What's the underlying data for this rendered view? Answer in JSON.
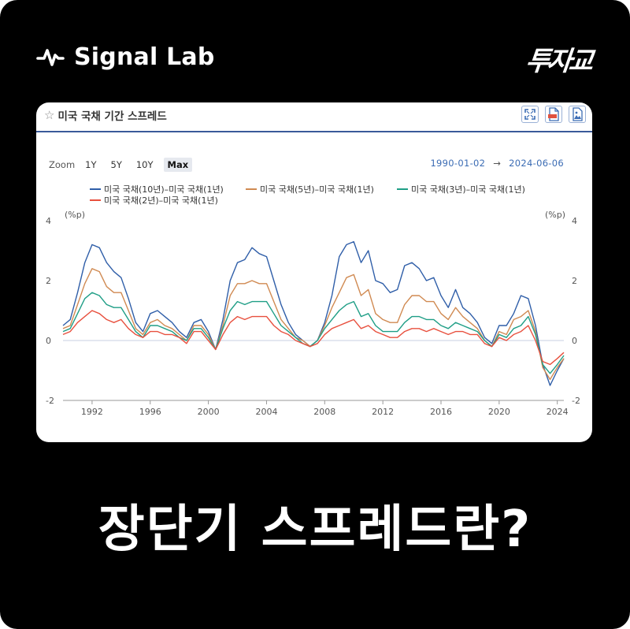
{
  "brand": {
    "name": "Signal Lab",
    "icon": "pulse-icon",
    "logo_text": "투자교"
  },
  "card": {
    "title": "미국 국채 기간 스프레드",
    "tools": [
      "fullscreen-icon",
      "download-pdf-icon",
      "download-image-icon"
    ],
    "zoom_label": "Zoom",
    "zoom_options": [
      "1Y",
      "5Y",
      "10Y",
      "Max"
    ],
    "zoom_selected": "Max",
    "range_start": "1990-01-02",
    "range_arrow": "→",
    "range_end": "2024-06-06"
  },
  "headline": "장단기 스프레드란?",
  "chart_data": {
    "type": "line",
    "ylabel_left": "(%p)",
    "ylabel_right": "(%p)",
    "ylim": [
      -2,
      4
    ],
    "yticks": [
      -2,
      0,
      2,
      4
    ],
    "xlim": [
      1990.0,
      2024.45
    ],
    "xticks": [
      1992,
      1996,
      2000,
      2004,
      2008,
      2012,
      2016,
      2020,
      2024
    ],
    "legend_position": "top",
    "series": [
      {
        "name": "미국 국채(10년)–미국 국채(1년)",
        "color": "#2f5ea8",
        "x": [
          1990.0,
          1990.5,
          1991.0,
          1991.5,
          1992.0,
          1992.5,
          1993.0,
          1993.5,
          1994.0,
          1994.5,
          1995.0,
          1995.5,
          1996.0,
          1996.5,
          1997.0,
          1997.5,
          1998.0,
          1998.5,
          1999.0,
          1999.5,
          2000.0,
          2000.5,
          2001.0,
          2001.5,
          2002.0,
          2002.5,
          2003.0,
          2003.5,
          2004.0,
          2004.5,
          2005.0,
          2005.5,
          2006.0,
          2006.5,
          2007.0,
          2007.5,
          2008.0,
          2008.5,
          2009.0,
          2009.5,
          2010.0,
          2010.5,
          2011.0,
          2011.5,
          2012.0,
          2012.5,
          2013.0,
          2013.5,
          2014.0,
          2014.5,
          2015.0,
          2015.5,
          2016.0,
          2016.5,
          2017.0,
          2017.5,
          2018.0,
          2018.5,
          2019.0,
          2019.5,
          2020.0,
          2020.5,
          2021.0,
          2021.5,
          2022.0,
          2022.5,
          2023.0,
          2023.5,
          2024.0,
          2024.45
        ],
        "values": [
          0.5,
          0.7,
          1.6,
          2.6,
          3.2,
          3.1,
          2.6,
          2.3,
          2.1,
          1.4,
          0.6,
          0.3,
          0.9,
          1.0,
          0.8,
          0.6,
          0.3,
          0.1,
          0.6,
          0.7,
          0.3,
          -0.3,
          0.7,
          2.0,
          2.6,
          2.7,
          3.1,
          2.9,
          2.8,
          2.0,
          1.2,
          0.6,
          0.2,
          0.0,
          -0.2,
          0.0,
          0.6,
          1.5,
          2.8,
          3.2,
          3.3,
          2.6,
          3.0,
          2.0,
          1.9,
          1.6,
          1.7,
          2.5,
          2.6,
          2.4,
          2.0,
          2.1,
          1.5,
          1.1,
          1.7,
          1.1,
          0.9,
          0.6,
          0.1,
          -0.1,
          0.5,
          0.5,
          0.9,
          1.5,
          1.4,
          0.5,
          -0.8,
          -1.5,
          -1.0,
          -0.6
        ]
      },
      {
        "name": "미국 국채(5년)–미국 국채(1년)",
        "color": "#d08a52",
        "x": [
          1990.0,
          1990.5,
          1991.0,
          1991.5,
          1992.0,
          1992.5,
          1993.0,
          1993.5,
          1994.0,
          1994.5,
          1995.0,
          1995.5,
          1996.0,
          1996.5,
          1997.0,
          1997.5,
          1998.0,
          1998.5,
          1999.0,
          1999.5,
          2000.0,
          2000.5,
          2001.0,
          2001.5,
          2002.0,
          2002.5,
          2003.0,
          2003.5,
          2004.0,
          2004.5,
          2005.0,
          2005.5,
          2006.0,
          2006.5,
          2007.0,
          2007.5,
          2008.0,
          2008.5,
          2009.0,
          2009.5,
          2010.0,
          2010.5,
          2011.0,
          2011.5,
          2012.0,
          2012.5,
          2013.0,
          2013.5,
          2014.0,
          2014.5,
          2015.0,
          2015.5,
          2016.0,
          2016.5,
          2017.0,
          2017.5,
          2018.0,
          2018.5,
          2019.0,
          2019.5,
          2020.0,
          2020.5,
          2021.0,
          2021.5,
          2022.0,
          2022.5,
          2023.0,
          2023.5,
          2024.0,
          2024.45
        ],
        "values": [
          0.4,
          0.5,
          1.2,
          1.9,
          2.4,
          2.3,
          1.8,
          1.6,
          1.6,
          1.0,
          0.4,
          0.2,
          0.6,
          0.7,
          0.5,
          0.4,
          0.2,
          0.0,
          0.5,
          0.5,
          0.2,
          -0.3,
          0.5,
          1.5,
          1.9,
          1.9,
          2.0,
          1.9,
          1.9,
          1.3,
          0.7,
          0.4,
          0.1,
          0.0,
          -0.2,
          0.0,
          0.5,
          1.1,
          1.6,
          2.1,
          2.2,
          1.5,
          1.7,
          0.9,
          0.7,
          0.6,
          0.6,
          1.2,
          1.5,
          1.5,
          1.3,
          1.3,
          0.9,
          0.7,
          1.1,
          0.8,
          0.6,
          0.4,
          0.0,
          -0.2,
          0.3,
          0.2,
          0.7,
          0.8,
          1.0,
          0.3,
          -0.9,
          -1.3,
          -0.9,
          -0.6
        ]
      },
      {
        "name": "미국 국채(3년)–미국 국채(1년)",
        "color": "#1f9e86",
        "x": [
          1990.0,
          1990.5,
          1991.0,
          1991.5,
          1992.0,
          1992.5,
          1993.0,
          1993.5,
          1994.0,
          1994.5,
          1995.0,
          1995.5,
          1996.0,
          1996.5,
          1997.0,
          1997.5,
          1998.0,
          1998.5,
          1999.0,
          1999.5,
          2000.0,
          2000.5,
          2001.0,
          2001.5,
          2002.0,
          2002.5,
          2003.0,
          2003.5,
          2004.0,
          2004.5,
          2005.0,
          2005.5,
          2006.0,
          2006.5,
          2007.0,
          2007.5,
          2008.0,
          2008.5,
          2009.0,
          2009.5,
          2010.0,
          2010.5,
          2011.0,
          2011.5,
          2012.0,
          2012.5,
          2013.0,
          2013.5,
          2014.0,
          2014.5,
          2015.0,
          2015.5,
          2016.0,
          2016.5,
          2017.0,
          2017.5,
          2018.0,
          2018.5,
          2019.0,
          2019.5,
          2020.0,
          2020.5,
          2021.0,
          2021.5,
          2022.0,
          2022.5,
          2023.0,
          2023.5,
          2024.0,
          2024.45
        ],
        "values": [
          0.3,
          0.4,
          0.9,
          1.4,
          1.6,
          1.5,
          1.2,
          1.1,
          1.1,
          0.7,
          0.3,
          0.1,
          0.5,
          0.5,
          0.4,
          0.3,
          0.1,
          0.0,
          0.4,
          0.4,
          0.1,
          -0.3,
          0.4,
          1.0,
          1.3,
          1.2,
          1.3,
          1.3,
          1.3,
          0.9,
          0.5,
          0.3,
          0.1,
          -0.1,
          -0.2,
          0.0,
          0.4,
          0.7,
          1.0,
          1.2,
          1.3,
          0.8,
          0.9,
          0.5,
          0.3,
          0.3,
          0.3,
          0.6,
          0.8,
          0.8,
          0.7,
          0.7,
          0.5,
          0.4,
          0.6,
          0.5,
          0.4,
          0.3,
          0.0,
          -0.2,
          0.2,
          0.1,
          0.4,
          0.5,
          0.8,
          0.2,
          -0.8,
          -1.1,
          -0.8,
          -0.5
        ]
      },
      {
        "name": "미국 국채(2년)–미국 국채(1년)",
        "color": "#e8503e",
        "x": [
          1990.0,
          1990.5,
          1991.0,
          1991.5,
          1992.0,
          1992.5,
          1993.0,
          1993.5,
          1994.0,
          1994.5,
          1995.0,
          1995.5,
          1996.0,
          1996.5,
          1997.0,
          1997.5,
          1998.0,
          1998.5,
          1999.0,
          1999.5,
          2000.0,
          2000.5,
          2001.0,
          2001.5,
          2002.0,
          2002.5,
          2003.0,
          2003.5,
          2004.0,
          2004.5,
          2005.0,
          2005.5,
          2006.0,
          2006.5,
          2007.0,
          2007.5,
          2008.0,
          2008.5,
          2009.0,
          2009.5,
          2010.0,
          2010.5,
          2011.0,
          2011.5,
          2012.0,
          2012.5,
          2013.0,
          2013.5,
          2014.0,
          2014.5,
          2015.0,
          2015.5,
          2016.0,
          2016.5,
          2017.0,
          2017.5,
          2018.0,
          2018.5,
          2019.0,
          2019.5,
          2020.0,
          2020.5,
          2021.0,
          2021.5,
          2022.0,
          2022.5,
          2023.0,
          2023.5,
          2024.0,
          2024.45
        ],
        "values": [
          0.2,
          0.3,
          0.6,
          0.8,
          1.0,
          0.9,
          0.7,
          0.6,
          0.7,
          0.4,
          0.2,
          0.1,
          0.3,
          0.3,
          0.2,
          0.2,
          0.1,
          -0.1,
          0.3,
          0.3,
          0.0,
          -0.3,
          0.2,
          0.6,
          0.8,
          0.7,
          0.8,
          0.8,
          0.8,
          0.5,
          0.3,
          0.2,
          0.0,
          -0.1,
          -0.2,
          -0.1,
          0.2,
          0.4,
          0.5,
          0.6,
          0.7,
          0.4,
          0.5,
          0.3,
          0.2,
          0.1,
          0.1,
          0.3,
          0.4,
          0.4,
          0.3,
          0.4,
          0.3,
          0.2,
          0.3,
          0.3,
          0.2,
          0.2,
          -0.1,
          -0.2,
          0.1,
          0.0,
          0.2,
          0.3,
          0.5,
          0.0,
          -0.7,
          -0.8,
          -0.6,
          -0.4
        ]
      }
    ]
  }
}
